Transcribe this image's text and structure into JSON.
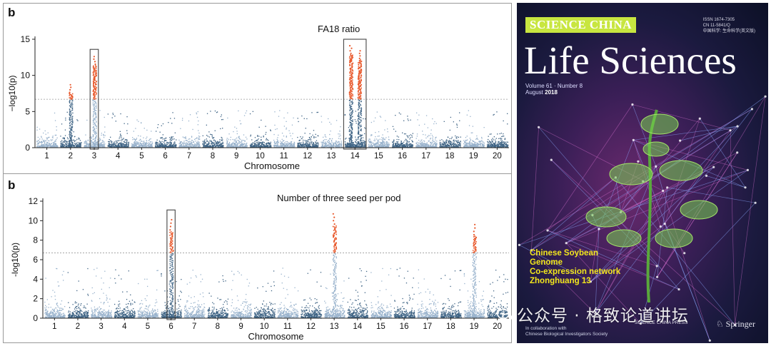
{
  "panels": [
    {
      "letter": "b",
      "title": "FA18 ratio"
    },
    {
      "letter": "b",
      "title": "Number of three seed per pod"
    }
  ],
  "chart_data": [
    {
      "type": "scatter",
      "title": "FA18 ratio",
      "xlabel": "Chromosome",
      "ylabel": "−log10(p)",
      "x_categories": [
        "1",
        "2",
        "3",
        "4",
        "5",
        "6",
        "7",
        "8",
        "9",
        "10",
        "11",
        "12",
        "13",
        "14",
        "15",
        "16",
        "17",
        "18",
        "19",
        "20"
      ],
      "yticks": [
        0,
        5,
        10,
        15
      ],
      "ylim": [
        0,
        15
      ],
      "threshold": 6.7,
      "grid": false,
      "colors": {
        "dark": "#3f6485",
        "light": "#98b2cc",
        "significant": "#e8572a",
        "box": "#444444",
        "threshold": "#9a9a9a"
      },
      "peaks": [
        {
          "chromosome": "2",
          "max_log10p": 8.7
        },
        {
          "chromosome": "3",
          "max_log10p": 12.6
        },
        {
          "chromosome": "14",
          "max_log10p": 14.1
        },
        {
          "chromosome": "14",
          "max_log10p": 13.4
        }
      ],
      "highlighted_regions": [
        "3",
        "14"
      ]
    },
    {
      "type": "scatter",
      "title": "Number of three seed per pod",
      "xlabel": "Chromosome",
      "ylabel": "-log10(p)",
      "x_categories": [
        "1",
        "2",
        "3",
        "4",
        "5",
        "6",
        "7",
        "8",
        "9",
        "10",
        "11",
        "12",
        "13",
        "14",
        "15",
        "16",
        "17",
        "18",
        "19",
        "20"
      ],
      "yticks": [
        0,
        2,
        4,
        6,
        8,
        10,
        12
      ],
      "ylim": [
        0,
        12
      ],
      "threshold": 6.7,
      "grid": false,
      "colors": {
        "dark": "#3f6485",
        "light": "#98b2cc",
        "significant": "#e8572a",
        "box": "#444444",
        "threshold": "#9a9a9a"
      },
      "peaks": [
        {
          "chromosome": "6",
          "max_log10p": 10.1
        },
        {
          "chromosome": "13",
          "max_log10p": 10.7
        },
        {
          "chromosome": "19",
          "max_log10p": 9.6
        }
      ],
      "highlighted_regions": [
        "6"
      ]
    }
  ],
  "cover": {
    "brand": "SCIENCE CHINA",
    "journal": "Life Sciences",
    "issn_lines": [
      "ISSN 1674-7305",
      "CN 11-5841/Q",
      "中国科学: 生命科学(英文版)"
    ],
    "volume": "Volume 61 · Number 8",
    "date_prefix": "August ",
    "year": "2018",
    "highlights": [
      "Chinese Soybean",
      "Genome",
      "Co-expression network",
      "Zhonghuang 13"
    ],
    "footer_left": [
      "In collaboration with",
      "Chinese Biological Investigators Society"
    ],
    "footer_mid": "SCIENCE CHINA PRESS",
    "footer_right": "Springer"
  },
  "watermark": "公众号 · 格致论道讲坛"
}
